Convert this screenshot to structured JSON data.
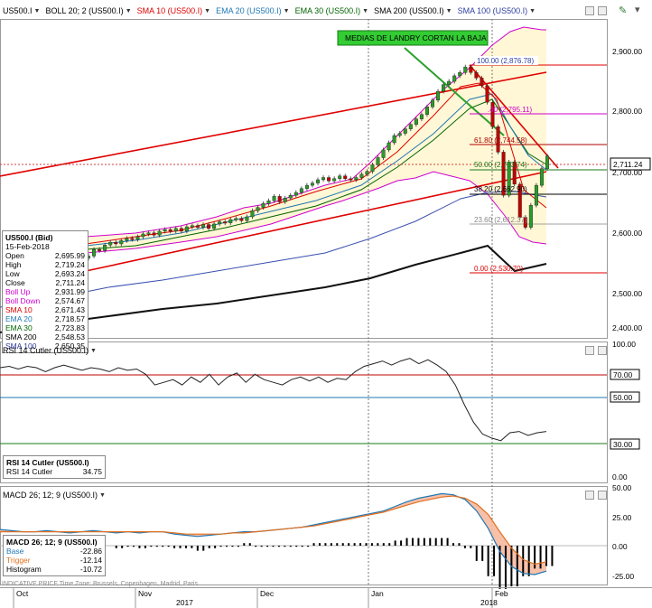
{
  "header": {
    "items": [
      {
        "label": "US500.I",
        "color": "#000000"
      },
      {
        "label": "BOLL 20; 2 (US500.I)",
        "color": "#000000"
      },
      {
        "label": "SMA 10 (US500.I)",
        "color": "#e00000"
      },
      {
        "label": "EMA 20 (US500.I)",
        "color": "#1f77b4"
      },
      {
        "label": "EMA 30 (US500.I)",
        "color": "#006400"
      },
      {
        "label": "SMA 200 (US500.I)",
        "color": "#000000"
      },
      {
        "label": "SMA 100 (US500.I)",
        "color": "#2c3e9e"
      }
    ]
  },
  "annotation": {
    "text": "MEDIAS DE LANDRY CORTAN  LA BAJA"
  },
  "price_panel": {
    "y_ticks": [
      "2,900.00",
      "2,800.00",
      "2,700.00",
      "2,600.00",
      "2,500.00",
      "2,400.00"
    ],
    "last_price": "2,711.24",
    "fib_labels": [
      "100.00 (2,876.78)",
      "61.80 (2,744.58)",
      "50.00 (2,703.74)",
      "38.20 (2,662.90)",
      "23.60 (2,612.37)",
      "0.00 (2,530.70)"
    ],
    "fib_partial": ".40 (2,795.11)"
  },
  "info": {
    "title": "US500.I (Bid)",
    "date": "15-Feb-2018",
    "rows": [
      {
        "k": "Open",
        "v": "2,695.99",
        "c": "#000000"
      },
      {
        "k": "High",
        "v": "2,719.24",
        "c": "#000000"
      },
      {
        "k": "Low",
        "v": "2,693.24",
        "c": "#000000"
      },
      {
        "k": "Close",
        "v": "2,711.24",
        "c": "#000000"
      },
      {
        "k": "Boll Up",
        "v": "2,931.99",
        "c": "#d000d0"
      },
      {
        "k": "Boll Down",
        "v": "2,574.67",
        "c": "#d000d0"
      },
      {
        "k": "SMA 10",
        "v": "2,671.43",
        "c": "#e00000"
      },
      {
        "k": "EMA 20",
        "v": "2,718.57",
        "c": "#1f77b4"
      },
      {
        "k": "EMA 30",
        "v": "2,723.83",
        "c": "#006400"
      },
      {
        "k": "SMA 200",
        "v": "2,548.53",
        "c": "#000000"
      },
      {
        "k": "SMA 100",
        "v": "2,650.35",
        "c": "#2c3e9e"
      }
    ]
  },
  "rsi_panel": {
    "header": "RSI 14 Cutler (US500.I)",
    "y_ticks": [
      "100.00",
      "70.00",
      "50.00",
      "30.00",
      "0.00"
    ],
    "box_title": "RSI 14 Cutler (US500.I)",
    "box_label": "RSI 14 Cutler",
    "box_value": "34.75"
  },
  "macd_panel": {
    "header": "MACD 26; 12; 9 (US500.I)",
    "y_ticks": [
      "50.00",
      "25.00",
      "0.00",
      "-25.00"
    ],
    "box_title": "MACD 26; 12; 9 (US500.I)",
    "rows": [
      {
        "k": "Base",
        "v": "-22.86",
        "c": "#1f77b4"
      },
      {
        "k": "Trigger",
        "v": "-12.14",
        "c": "#e07020"
      },
      {
        "k": "Histogram",
        "v": "-10.72",
        "c": "#000000"
      }
    ]
  },
  "footer": {
    "note": "INDICATIVE PRICE   Time Zone: Brussels, Copenhagen, Madrid, Paris",
    "months": [
      "Oct",
      "Nov",
      "Dec",
      "Jan",
      "Feb"
    ],
    "years": [
      "2017",
      "2018"
    ]
  },
  "chart_data": {
    "type": "line",
    "symbol": "US500.I",
    "ylim": [
      2400,
      2950
    ],
    "close": [
      2530,
      2542,
      2540,
      2550,
      2555,
      2552,
      2558,
      2562,
      2560,
      2565,
      2570,
      2572,
      2568,
      2575,
      2578,
      2575,
      2580,
      2575,
      2583,
      2585,
      2582,
      2587,
      2580,
      2588,
      2592,
      2590,
      2596,
      2598,
      2594,
      2601,
      2612,
      2618,
      2625,
      2630,
      2638,
      2628,
      2635,
      2640,
      2645,
      2652,
      2658,
      2662,
      2668,
      2672,
      2666,
      2670,
      2675,
      2670,
      2668,
      2672,
      2678,
      2683,
      2695,
      2708,
      2722,
      2735,
      2748,
      2752,
      2760,
      2768,
      2778,
      2786,
      2800,
      2812,
      2828,
      2840,
      2846,
      2856,
      2862,
      2872,
      2862,
      2852,
      2838,
      2808,
      2764,
      2718,
      2640,
      2700,
      2660,
      2600,
      2582,
      2622,
      2658,
      2688,
      2711
    ],
    "sma200": [
      2432,
      2435,
      2438,
      2441,
      2444,
      2447,
      2450,
      2453,
      2456,
      2459,
      2462,
      2465,
      2468,
      2471,
      2474,
      2477,
      2480,
      2483,
      2486,
      2489,
      2492,
      2495,
      2498,
      2501,
      2504,
      2507,
      2510,
      2513,
      2516,
      2519,
      2522,
      2525,
      2528,
      2531,
      2534,
      2537,
      2540,
      2543,
      2546,
      2549
    ],
    "rsi": [
      83,
      84,
      82,
      84,
      83,
      80,
      83,
      85,
      83,
      81,
      83,
      82,
      80,
      83,
      81,
      82,
      78,
      70,
      72,
      74,
      70,
      76,
      72,
      78,
      70,
      76,
      79,
      72,
      78,
      74,
      72,
      70,
      74,
      76,
      73,
      76,
      72,
      75,
      74,
      80,
      84,
      86,
      88,
      85,
      88,
      90,
      86,
      89,
      85,
      80,
      70,
      55,
      42,
      33,
      30,
      28,
      34,
      35,
      32,
      34,
      35
    ],
    "macd_base": [
      14,
      13,
      12,
      12,
      13,
      12,
      11,
      12,
      13,
      12,
      11,
      12,
      11,
      12,
      12,
      10,
      9,
      8,
      9,
      10,
      11,
      12,
      12,
      13,
      14,
      15,
      16,
      18,
      20,
      22,
      24,
      26,
      28,
      30,
      34,
      38,
      41,
      43,
      45,
      44,
      40,
      30,
      15,
      -5,
      -18,
      -24,
      -25,
      -22
    ],
    "macd_trigger": [
      12,
      12,
      12,
      12,
      12,
      12,
      12,
      12,
      12,
      12,
      12,
      12,
      12,
      12,
      12,
      11,
      10,
      10,
      10,
      10,
      11,
      11,
      12,
      13,
      14,
      15,
      16,
      17,
      19,
      21,
      23,
      25,
      27,
      29,
      32,
      35,
      38,
      40,
      42,
      43,
      41,
      36,
      27,
      12,
      -2,
      -12,
      -16,
      -14
    ],
    "rsi_levels": [
      70,
      50,
      30
    ]
  }
}
